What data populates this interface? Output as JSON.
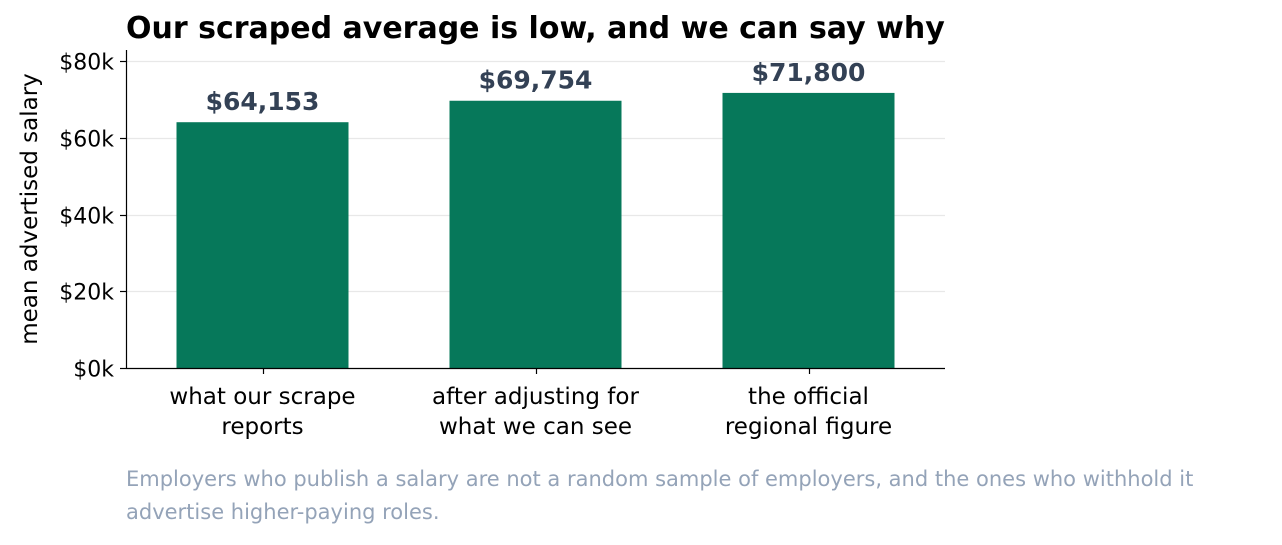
{
  "chart_data": {
    "type": "bar",
    "title": "Our scraped average is low, and we can say why",
    "ylabel": "mean advertised salary",
    "xlabel": "",
    "categories": [
      [
        "what our scrape",
        "reports"
      ],
      [
        "after adjusting for",
        "what we can see"
      ],
      [
        "the official",
        "regional figure"
      ]
    ],
    "values": [
      64153,
      69754,
      71800
    ],
    "value_labels": [
      "$64,153",
      "$69,754",
      "$71,800"
    ],
    "ylim": [
      0,
      83000
    ],
    "yticks": [
      0,
      20000,
      40000,
      60000,
      80000
    ],
    "ytick_labels": [
      "$0k",
      "$20k",
      "$40k",
      "$60k",
      "$80k"
    ],
    "grid": "horizontal",
    "legend": "none",
    "bar_color": "#06785a",
    "value_label_color": "#334155",
    "caption": "Employers who publish a salary are not a random sample of employers, and the ones who withhold it advertise higher-paying roles."
  }
}
